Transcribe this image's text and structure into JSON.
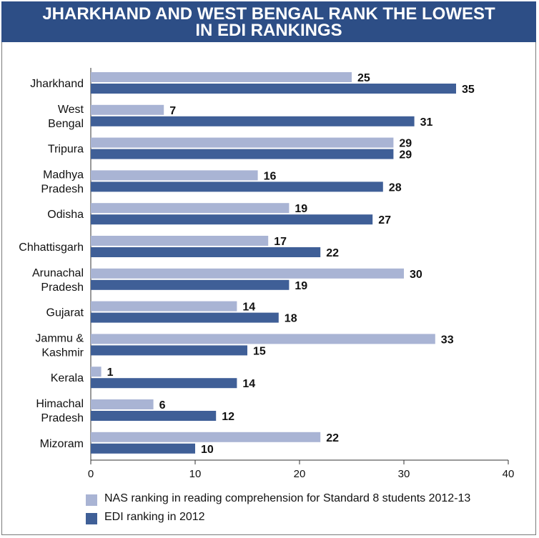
{
  "title_lines": [
    "JHARKHAND AND WEST BENGAL RANK THE LOWEST",
    "IN EDI RANKINGS"
  ],
  "colors": {
    "header_bg": "#2d4e86",
    "nas": "#a9b4d4",
    "edi": "#3f5f97",
    "axis": "#333333",
    "grid": "#aaaaaa"
  },
  "chart_data": {
    "type": "bar",
    "orientation": "horizontal",
    "title": "JHARKHAND AND WEST BENGAL RANK THE LOWEST IN EDI RANKINGS",
    "categories": [
      [
        "Jharkhand"
      ],
      [
        "West",
        "Bengal"
      ],
      [
        "Tripura"
      ],
      [
        "Madhya",
        "Pradesh"
      ],
      [
        "Odisha"
      ],
      [
        "Chhattisgarh"
      ],
      [
        "Arunachal",
        "Pradesh"
      ],
      [
        "Gujarat"
      ],
      [
        "Jammu &",
        "Kashmir"
      ],
      [
        "Kerala"
      ],
      [
        "Himachal",
        "Pradesh"
      ],
      [
        "Mizoram"
      ]
    ],
    "series": [
      {
        "name": "NAS ranking in reading comprehension for Standard 8 students 2012-13",
        "values": [
          25,
          7,
          29,
          16,
          19,
          17,
          30,
          14,
          33,
          1,
          6,
          22
        ]
      },
      {
        "name": "EDI ranking in 2012",
        "values": [
          35,
          31,
          29,
          28,
          27,
          22,
          19,
          18,
          15,
          14,
          12,
          10
        ]
      }
    ],
    "xlim": [
      0,
      40
    ],
    "xticks": [
      0,
      10,
      20,
      30,
      40
    ],
    "legend_position": "bottom-left",
    "grid": false
  }
}
